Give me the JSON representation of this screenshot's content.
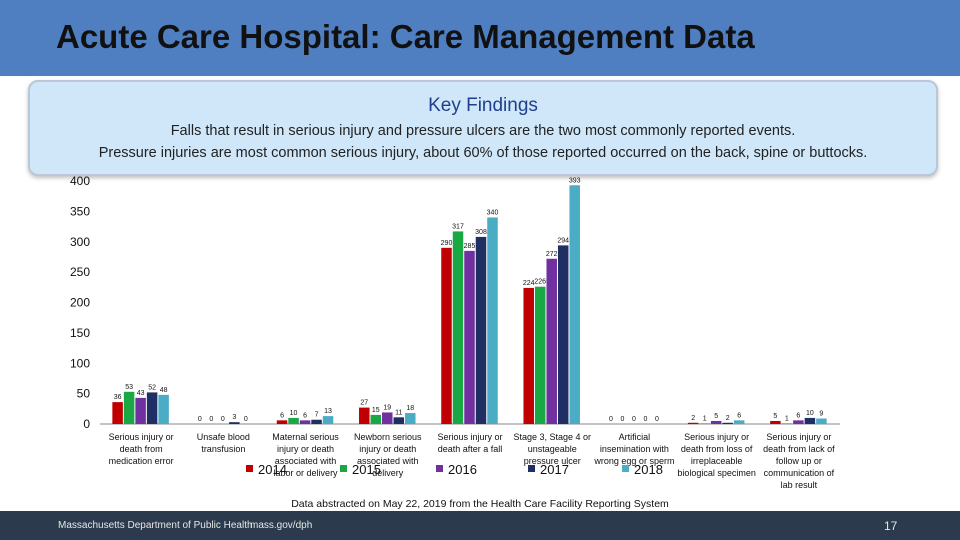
{
  "slide": {
    "title": "Acute Care Hospital: Care Management Data",
    "findings_title": "Key Findings",
    "findings_line1": "Falls that result in serious injury and pressure ulcers are the two most commonly reported events.",
    "findings_line2": "Pressure injuries are most common serious injury, about 60% of those reported occurred on the back, spine or buttocks.",
    "source_note": "Data abstracted on May 22, 2019 from the Health Care Facility Reporting System",
    "footer_org": "Massachusetts Department of Public Health",
    "footer_url": "mass.gov/dph",
    "page_number": "17"
  },
  "chart_data": {
    "type": "bar",
    "ylim": [
      0,
      400
    ],
    "yticks": [
      0,
      50,
      100,
      150,
      200,
      250,
      300,
      350,
      400
    ],
    "grid": false,
    "legend_position": "bottom",
    "categories": [
      [
        "Serious injury or",
        "death from",
        "medication error"
      ],
      [
        "Unsafe blood",
        "transfusion"
      ],
      [
        "Maternal serious",
        "injury or death",
        "associated with",
        "labor or delivery"
      ],
      [
        "Newborn serious",
        "injury or death",
        "associated with",
        "delivery"
      ],
      [
        "Serious injury or",
        "death after a fall"
      ],
      [
        "Stage 3, Stage 4 or",
        "unstageable",
        "pressure ulcer"
      ],
      [
        "Artificial",
        "insemination with",
        "wrong egg or sperm"
      ],
      [
        "Serious injury or",
        "death from loss of",
        "irreplaceable",
        "biological specimen"
      ],
      [
        "Serious injury or",
        "death from lack of",
        "follow up or",
        "communication of",
        "lab result"
      ]
    ],
    "series": [
      {
        "name": "2014",
        "color": "#c00000",
        "values": [
          36,
          0,
          6,
          27,
          290,
          224,
          0,
          2,
          5
        ]
      },
      {
        "name": "2015",
        "color": "#1aa845",
        "values": [
          53,
          0,
          10,
          15,
          317,
          226,
          0,
          1,
          1
        ]
      },
      {
        "name": "2016",
        "color": "#7030a0",
        "values": [
          43,
          0,
          6,
          19,
          285,
          272,
          0,
          5,
          6
        ]
      },
      {
        "name": "2017",
        "color": "#1f2e63",
        "values": [
          52,
          3,
          7,
          11,
          308,
          294,
          0,
          2,
          10
        ]
      },
      {
        "name": "2018",
        "color": "#4bacc6",
        "values": [
          48,
          0,
          13,
          18,
          340,
          393,
          0,
          6,
          9
        ]
      }
    ],
    "colors": {
      "text": "#111111",
      "axis": "#888888"
    }
  }
}
